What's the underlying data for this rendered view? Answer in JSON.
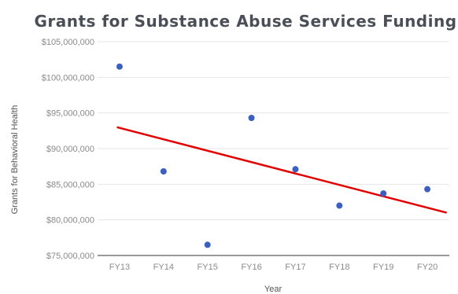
{
  "chart_data": {
    "type": "scatter",
    "title": "Grants for Substance Abuse Services Funding",
    "xlabel": "Year",
    "ylabel": "Grants for Behavioral Health",
    "categories": [
      "FY13",
      "FY14",
      "FY15",
      "FY16",
      "FY17",
      "FY18",
      "FY19",
      "FY20"
    ],
    "ylim": [
      75000000,
      105000000
    ],
    "yticks": [
      75000000,
      80000000,
      85000000,
      90000000,
      95000000,
      100000000,
      105000000
    ],
    "ytick_labels": [
      "$75,000,000",
      "$80,000,000",
      "$85,000,000",
      "$90,000,000",
      "$95,000,000",
      "$100,000,000",
      "$105,000,000"
    ],
    "series": [
      {
        "values": [
          101500000,
          86800000,
          76500000,
          94300000,
          87100000,
          82000000,
          83700000,
          84300000
        ],
        "color": "#3b5fc0"
      }
    ],
    "trendline": {
      "type": "linear",
      "color": "#e00000",
      "start": {
        "x": 0.0,
        "y": 93000000
      },
      "end": {
        "x": 7.5,
        "y": 81000000
      }
    },
    "grid": true,
    "legend": "none"
  }
}
